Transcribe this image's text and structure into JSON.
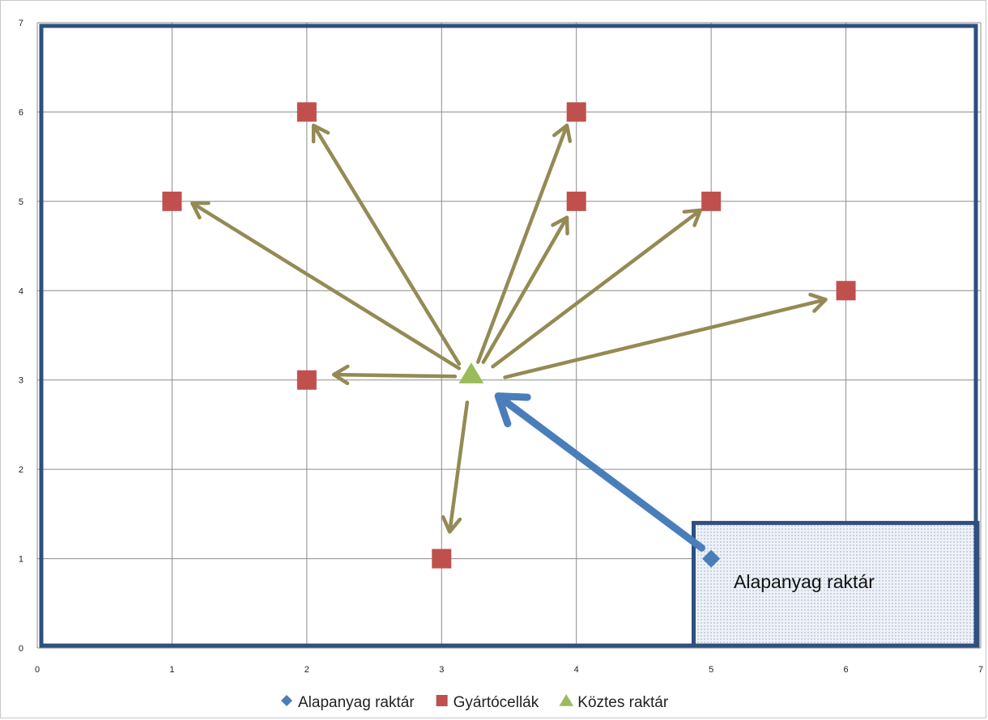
{
  "chart_data": {
    "type": "scatter",
    "title": "",
    "xlabel": "",
    "ylabel": "",
    "xlim": [
      0,
      7
    ],
    "ylim": [
      0,
      7
    ],
    "x_ticks": [
      "0",
      "1",
      "2",
      "3",
      "4",
      "5",
      "6",
      "7"
    ],
    "y_ticks": [
      "0",
      "1",
      "2",
      "3",
      "4",
      "5",
      "6",
      "7"
    ],
    "grid": true,
    "legend_position": "bottom",
    "series": [
      {
        "name": "Alapanyag raktár",
        "marker": "diamond",
        "color": "#4a7ebb",
        "points": [
          [
            5,
            1
          ]
        ]
      },
      {
        "name": "Gyártócellák",
        "marker": "square",
        "color": "#c0504d",
        "points": [
          [
            1,
            5
          ],
          [
            2,
            6
          ],
          [
            4,
            6
          ],
          [
            4,
            5
          ],
          [
            5,
            5
          ],
          [
            6,
            4
          ],
          [
            2,
            3
          ],
          [
            3,
            1
          ]
        ]
      },
      {
        "name": "Köztes raktár",
        "marker": "triangle",
        "color": "#9bbb59",
        "points": [
          [
            3.22,
            3.07
          ]
        ]
      }
    ],
    "annotations": {
      "storage_area_label": "Alapanyag raktár",
      "storage_area_range": {
        "x": [
          4.87,
          7
        ],
        "y": [
          0,
          1.4
        ]
      },
      "supply_arrow": {
        "from": [
          4.93,
          1.12
        ],
        "to": [
          3.42,
          2.82
        ],
        "color": "#4a7ebb"
      },
      "distribution_arrow_color": "#948a54",
      "distribution_arrows": [
        {
          "from": [
            3.13,
            3.13
          ],
          "to": [
            1.15,
            4.98
          ]
        },
        {
          "from": [
            3.13,
            3.18
          ],
          "to": [
            2.05,
            5.85
          ]
        },
        {
          "from": [
            3.27,
            3.2
          ],
          "to": [
            3.93,
            5.85
          ]
        },
        {
          "from": [
            3.31,
            3.2
          ],
          "to": [
            3.93,
            4.82
          ]
        },
        {
          "from": [
            3.38,
            3.15
          ],
          "to": [
            4.92,
            4.9
          ]
        },
        {
          "from": [
            3.47,
            3.03
          ],
          "to": [
            5.85,
            3.9
          ]
        },
        {
          "from": [
            3.1,
            3.04
          ],
          "to": [
            2.2,
            3.06
          ]
        },
        {
          "from": [
            3.19,
            2.75
          ],
          "to": [
            3.06,
            1.3
          ]
        }
      ]
    }
  }
}
